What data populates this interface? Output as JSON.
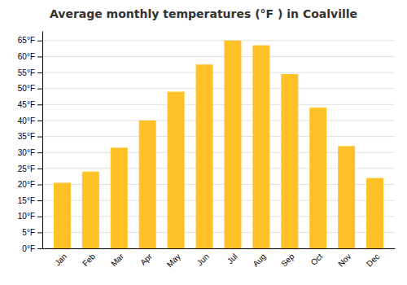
{
  "chart_data": {
    "type": "bar",
    "title": "Average monthly temperatures (°F ) in Coalville",
    "categories": [
      "Jan",
      "Feb",
      "Mar",
      "Apr",
      "May",
      "Jun",
      "Jul",
      "Aug",
      "Sep",
      "Oct",
      "Nov",
      "Dec"
    ],
    "values": [
      20.5,
      24.0,
      31.5,
      40.0,
      49.0,
      57.5,
      65.0,
      63.5,
      54.5,
      44.0,
      32.0,
      22.0
    ],
    "color": "#FFC125",
    "ylim": [
      0,
      68
    ],
    "yticks": [
      {
        "value": 0,
        "label": "0°F"
      },
      {
        "value": 5,
        "label": "5°F"
      },
      {
        "value": 10,
        "label": "10°F"
      },
      {
        "value": 15,
        "label": "15°F"
      },
      {
        "value": 20,
        "label": "20°F"
      },
      {
        "value": 25,
        "label": "25°F"
      },
      {
        "value": 30,
        "label": "30°F"
      },
      {
        "value": 35,
        "label": "35°F"
      },
      {
        "value": 40,
        "label": "40°F"
      },
      {
        "value": 45,
        "label": "45°F"
      },
      {
        "value": 50,
        "label": "50°F"
      },
      {
        "value": 55,
        "label": "55°F"
      },
      {
        "value": 60,
        "label": "60°F"
      },
      {
        "value": 65,
        "label": "65°F"
      }
    ],
    "grid": true
  }
}
